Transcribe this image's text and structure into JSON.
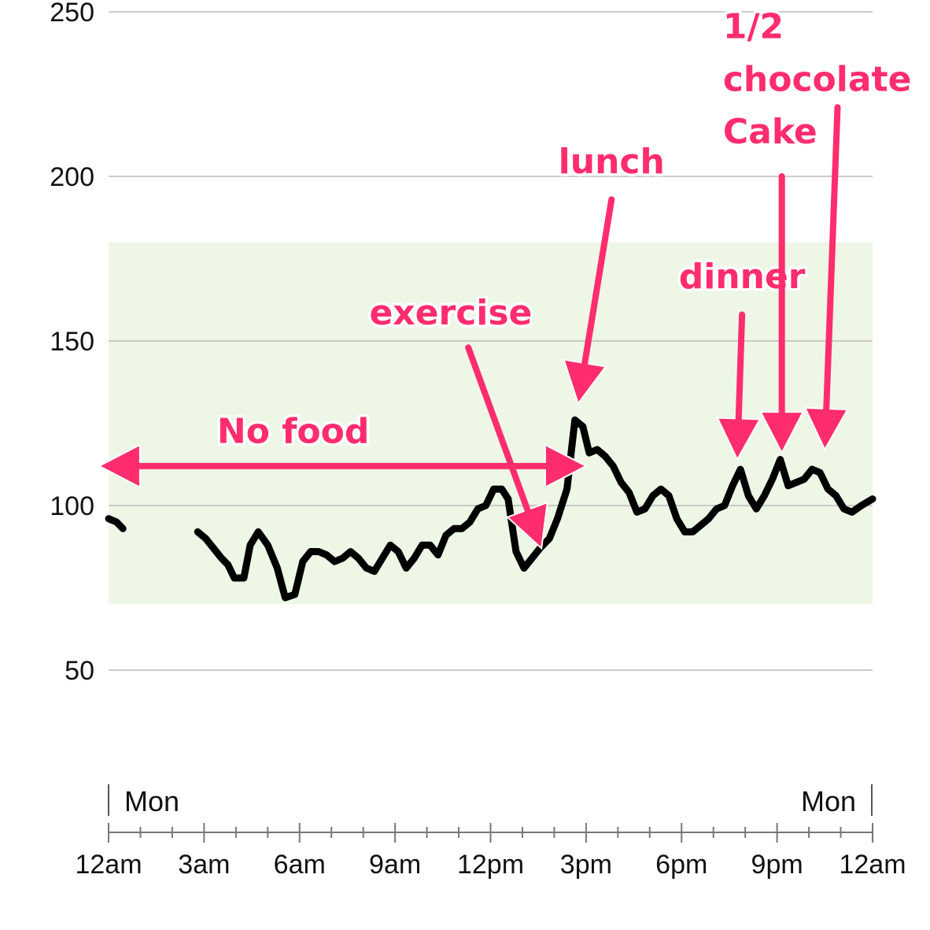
{
  "chart_data": {
    "type": "line",
    "title": "",
    "xlabel": "",
    "ylabel": "",
    "ylim": [
      50,
      250
    ],
    "xlim_hours": [
      0,
      24
    ],
    "yticks": [
      50,
      100,
      150,
      200,
      250
    ],
    "target_range": [
      70,
      180
    ],
    "xticks": [
      {
        "hour": 0,
        "label": "12am"
      },
      {
        "hour": 3,
        "label": "3am"
      },
      {
        "hour": 6,
        "label": "6am"
      },
      {
        "hour": 9,
        "label": "9am"
      },
      {
        "hour": 12,
        "label": "12pm"
      },
      {
        "hour": 15,
        "label": "3pm"
      },
      {
        "hour": 18,
        "label": "6pm"
      },
      {
        "hour": 21,
        "label": "9pm"
      },
      {
        "hour": 24,
        "label": "12am"
      }
    ],
    "day_labels": {
      "start": "Mon",
      "end": "Mon"
    },
    "colors": {
      "line": "#000000",
      "annotation": "#ff2d6e",
      "range_fill": "#eef6e6",
      "grid": "#bbbbbb"
    },
    "series": [
      {
        "segments": [
          [
            [
              0.0,
              96
            ],
            [
              0.25,
              95
            ],
            [
              0.45,
              93
            ]
          ],
          [
            [
              2.8,
              92
            ],
            [
              3.05,
              90
            ],
            [
              3.3,
              87
            ],
            [
              3.55,
              84
            ],
            [
              3.75,
              82
            ],
            [
              3.95,
              78
            ],
            [
              4.25,
              78
            ],
            [
              4.45,
              88
            ],
            [
              4.7,
              92
            ],
            [
              5.0,
              88
            ],
            [
              5.3,
              81
            ],
            [
              5.55,
              72
            ],
            [
              5.85,
              73
            ],
            [
              6.1,
              83
            ],
            [
              6.35,
              86
            ],
            [
              6.6,
              86
            ],
            [
              6.85,
              85
            ],
            [
              7.1,
              83
            ],
            [
              7.35,
              84
            ],
            [
              7.6,
              86
            ],
            [
              7.85,
              84
            ],
            [
              8.1,
              81
            ],
            [
              8.35,
              80
            ],
            [
              8.6,
              84
            ],
            [
              8.85,
              88
            ],
            [
              9.1,
              86
            ],
            [
              9.35,
              81
            ],
            [
              9.6,
              84
            ],
            [
              9.85,
              88
            ],
            [
              10.1,
              88
            ],
            [
              10.35,
              85
            ],
            [
              10.6,
              91
            ],
            [
              10.85,
              93
            ],
            [
              11.1,
              93
            ],
            [
              11.35,
              95
            ],
            [
              11.6,
              99
            ],
            [
              11.85,
              100
            ],
            [
              12.1,
              105
            ],
            [
              12.35,
              105
            ],
            [
              12.55,
              102
            ],
            [
              12.8,
              86
            ],
            [
              13.05,
              81
            ],
            [
              13.3,
              84
            ],
            [
              13.55,
              87
            ],
            [
              13.85,
              90
            ],
            [
              14.1,
              96
            ],
            [
              14.4,
              105
            ],
            [
              14.65,
              126
            ],
            [
              14.9,
              124
            ],
            [
              15.1,
              116
            ],
            [
              15.35,
              117
            ],
            [
              15.6,
              115
            ],
            [
              15.85,
              112
            ],
            [
              16.1,
              107
            ],
            [
              16.35,
              104
            ],
            [
              16.6,
              98
            ],
            [
              16.85,
              99
            ],
            [
              17.1,
              103
            ],
            [
              17.35,
              105
            ],
            [
              17.6,
              103
            ],
            [
              17.85,
              96
            ],
            [
              18.1,
              92
            ],
            [
              18.35,
              92
            ],
            [
              18.6,
              94
            ],
            [
              18.85,
              96
            ],
            [
              19.1,
              99
            ],
            [
              19.35,
              100
            ],
            [
              19.6,
              106
            ],
            [
              19.85,
              111
            ],
            [
              20.1,
              103
            ],
            [
              20.35,
              99
            ],
            [
              20.6,
              103
            ],
            [
              20.85,
              108
            ],
            [
              21.1,
              114
            ],
            [
              21.35,
              106
            ],
            [
              21.6,
              107
            ],
            [
              21.85,
              108
            ],
            [
              22.1,
              111
            ],
            [
              22.35,
              110
            ],
            [
              22.6,
              105
            ],
            [
              22.85,
              103
            ],
            [
              23.1,
              99
            ],
            [
              23.35,
              98
            ],
            [
              23.65,
              100
            ],
            [
              24.0,
              102
            ]
          ]
        ]
      }
    ],
    "annotations": [
      {
        "label": "No food",
        "lines": [
          "No food"
        ],
        "text_anchor": "middle",
        "text_at": [
          5.8,
          119
        ],
        "arrows": [
          {
            "from": [
              15.0,
              112
            ],
            "to": [
              -0.3,
              112
            ],
            "double": true
          }
        ]
      },
      {
        "label": "exercise",
        "lines": [
          "exercise"
        ],
        "text_anchor": "middle",
        "text_at": [
          10.75,
          155
        ],
        "arrows": [
          {
            "from": [
              11.3,
              148
            ],
            "to": [
              13.6,
              87
            ],
            "double": false
          }
        ]
      },
      {
        "label": "lunch",
        "lines": [
          "lunch"
        ],
        "text_anchor": "middle",
        "text_at": [
          15.8,
          201
        ],
        "arrows": [
          {
            "from": [
              15.8,
              193
            ],
            "to": [
              14.75,
              131
            ],
            "double": false
          }
        ]
      },
      {
        "label": "dinner",
        "lines": [
          "dinner"
        ],
        "text_anchor": "middle",
        "text_at": [
          19.9,
          166
        ],
        "arrows": [
          {
            "from": [
              19.9,
              158
            ],
            "to": [
              19.75,
              114
            ],
            "double": false
          }
        ]
      },
      {
        "label": "1/2 chocolate Cake",
        "lines": [
          "1/2",
          "chocolate",
          "Cake"
        ],
        "text_anchor": "start",
        "text_at": [
          19.3,
          242
        ],
        "line_step": 16,
        "arrows": [
          {
            "from": [
              21.15,
              200
            ],
            "to": [
              21.15,
              116
            ],
            "double": false
          },
          {
            "from": [
              22.9,
              221
            ],
            "to": [
              22.5,
              117
            ],
            "double": false
          }
        ]
      }
    ]
  }
}
